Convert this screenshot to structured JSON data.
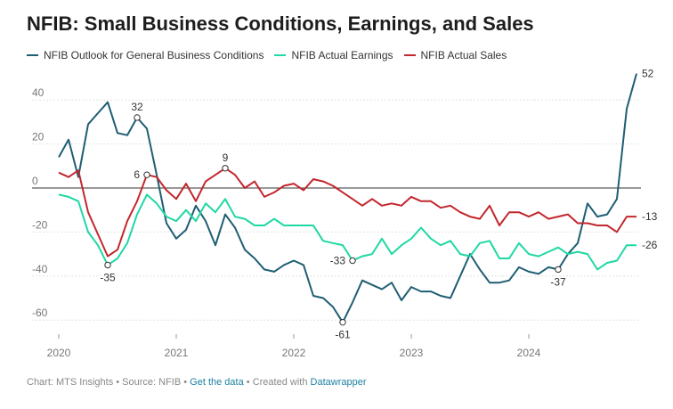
{
  "header": {
    "title": "NFIB: Small Business Conditions, Earnings, and Sales"
  },
  "footer": {
    "chart_by": "Chart: MTS Insights",
    "source": "Source: NFIB",
    "get_data": "Get the data",
    "created_with": "Created with",
    "datawrapper": "Datawrapper",
    "sep": " • "
  },
  "chart_data": {
    "type": "line",
    "title": "NFIB: Small Business Conditions, Earnings, and Sales",
    "xlabel": "",
    "ylabel": "",
    "ylim": [
      -70,
      55
    ],
    "yticks": [
      40,
      20,
      0,
      -20,
      -40,
      -60
    ],
    "xticks": [
      "2020",
      "2021",
      "2022",
      "2023",
      "2024"
    ],
    "x_start": "2020-01",
    "legend_position": "top-left",
    "series": [
      {
        "name": "NFIB Outlook for General Business Conditions",
        "color": "#1f5e73",
        "values": [
          14,
          22,
          5,
          29,
          34,
          39,
          25,
          24,
          32,
          27,
          6,
          -16,
          -23,
          -19,
          -8,
          -15,
          -26,
          -12,
          -18,
          -28,
          -32,
          -37,
          -38,
          -35,
          -33,
          -35,
          -49,
          -50,
          -54,
          -61,
          -52,
          -42,
          -44,
          -46,
          -43,
          -51,
          -45,
          -47,
          -47,
          -49,
          -50,
          -40,
          -30,
          -37,
          -43,
          -43,
          -42,
          -36,
          -38,
          -39,
          -36,
          -37,
          -30,
          -25,
          -7,
          -13,
          -12,
          -5,
          36,
          52
        ],
        "end_label": "52"
      },
      {
        "name": "NFIB Actual Earnings",
        "color": "#1fd8a4",
        "values": [
          -3,
          -4,
          -6,
          -20,
          -26,
          -35,
          -32,
          -25,
          -12,
          -3,
          -7,
          -13,
          -15,
          -10,
          -15,
          -7,
          -11,
          -5,
          -13,
          -14,
          -17,
          -17,
          -14,
          -17,
          -17,
          -17,
          -17,
          -24,
          -25,
          -26,
          -33,
          -31,
          -30,
          -23,
          -30,
          -26,
          -23,
          -18,
          -23,
          -26,
          -24,
          -30,
          -31,
          -25,
          -24,
          -32,
          -32,
          -25,
          -30,
          -31,
          -29,
          -27,
          -30,
          -29,
          -30,
          -37,
          -34,
          -33,
          -26,
          -26
        ],
        "end_label": "-26"
      },
      {
        "name": "NFIB Actual Sales",
        "color": "#c1272d",
        "values": [
          7,
          5,
          8,
          -11,
          -21,
          -31,
          -28,
          -15,
          -6,
          6,
          5,
          -1,
          -5,
          2,
          -6,
          3,
          6,
          9,
          6,
          0,
          3,
          -4,
          -2,
          1,
          2,
          -1,
          4,
          3,
          1,
          -2,
          -5,
          -8,
          -5,
          -8,
          -7,
          -8,
          -4,
          -6,
          -6,
          -9,
          -8,
          -11,
          -13,
          -14,
          -8,
          -17,
          -11,
          -11,
          -13,
          -11,
          -14,
          -13,
          -12,
          -16,
          -16,
          -17,
          -17,
          -20,
          -13,
          -13
        ],
        "end_label": "-13"
      }
    ],
    "annotations": [
      {
        "series": 0,
        "index": 8,
        "label": "32",
        "position": "above"
      },
      {
        "series": 2,
        "index": 9,
        "label": "6",
        "position": "left"
      },
      {
        "series": 1,
        "index": 5,
        "label": "-35",
        "position": "below"
      },
      {
        "series": 2,
        "index": 17,
        "label": "9",
        "position": "above"
      },
      {
        "series": 0,
        "index": 29,
        "label": "-61",
        "position": "below"
      },
      {
        "series": 1,
        "index": 30,
        "label": "-33",
        "position": "left"
      },
      {
        "series": 0,
        "index": 51,
        "label": "-37",
        "position": "below"
      }
    ]
  }
}
